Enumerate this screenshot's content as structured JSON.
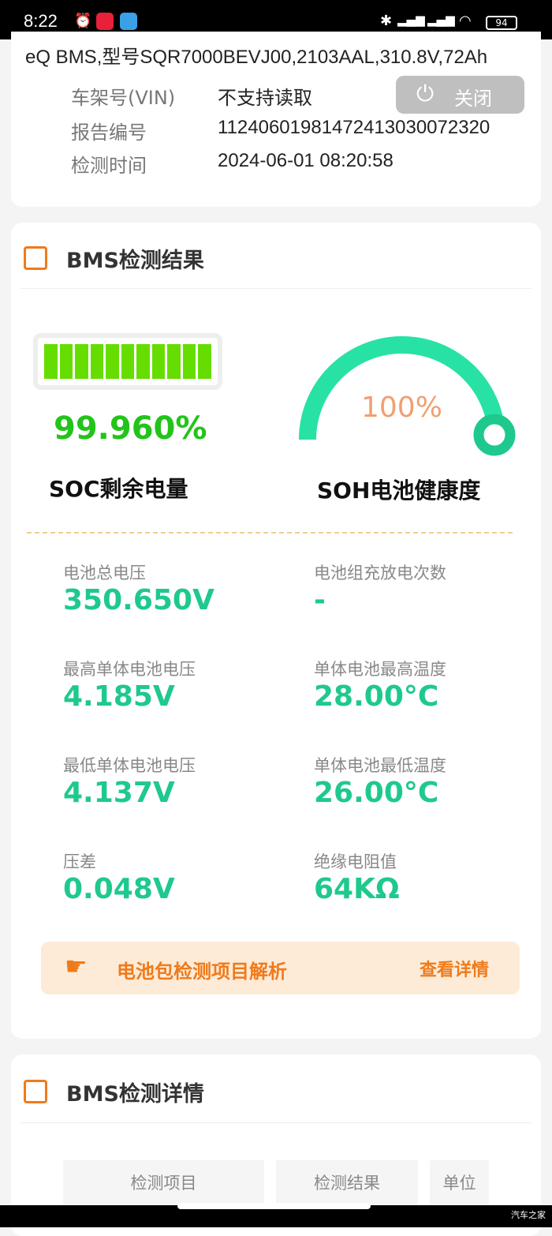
{
  "status_bar": {
    "time": "8:22",
    "battery": "94",
    "icons": [
      "alarm-icon",
      "xiaohongshu-app-icon",
      "china-mobile-app-icon",
      "bluetooth-icon",
      "signal-hd-icon",
      "signal-hd-icon",
      "wifi-icon",
      "battery-icon"
    ]
  },
  "header": {
    "model_line": "eQ BMS,型号SQR7000BEVJ00,2103AAL,310.8V,72Ah",
    "info": [
      {
        "label": "车架号(VIN)",
        "value": "不支持读取"
      },
      {
        "label": "报告编号",
        "value": "1124060198147241303007232​0"
      },
      {
        "label": "检测时间",
        "value": "2024-06-01 08:20:58"
      }
    ],
    "close_label": "关闭"
  },
  "bms_result": {
    "title": "BMS检测结果",
    "soc": {
      "value": "99.960%",
      "label": "SOC剩余电量",
      "fill_fraction": 0.9996,
      "color": "#66dd00"
    },
    "soh": {
      "value": "100%",
      "label": "SOH电池健康度",
      "percent": 100,
      "color": "#27e2a4"
    },
    "metrics": [
      {
        "label": "电池总电压",
        "value": "350.650V"
      },
      {
        "label": "电池组充放电次数",
        "value": "-"
      },
      {
        "label": "最高单体电池电压",
        "value": "4.185V"
      },
      {
        "label": "单体电池最高温度",
        "value": "28.00°C"
      },
      {
        "label": "最低单体电池电压",
        "value": "4.137V"
      },
      {
        "label": "单体电池最低温度",
        "value": "26.00°C"
      },
      {
        "label": "压差",
        "value": "0.048V"
      },
      {
        "label": "绝缘电阻值",
        "value": "64KΩ"
      }
    ],
    "tip": {
      "text": "电池包检测项目解析",
      "link": "查看详情"
    }
  },
  "bms_detail": {
    "title": "BMS检测详情",
    "columns": [
      "检测项目",
      "检测结果",
      "单位"
    ]
  },
  "watermark": "汽车之家",
  "colors": {
    "accent_orange": "#f07a1a",
    "value_green": "#1fc98e"
  }
}
